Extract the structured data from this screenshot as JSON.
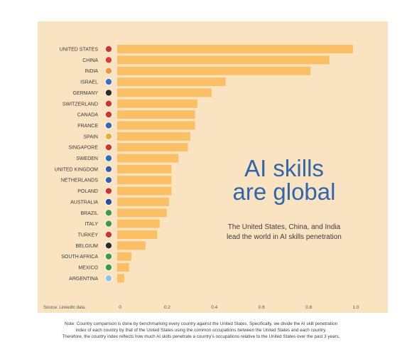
{
  "chart_data": {
    "type": "bar",
    "orientation": "horizontal",
    "categories": [
      "UNITED STATES",
      "CHINA",
      "INDIA",
      "ISRAEL",
      "GERMANY",
      "SWITZERLAND",
      "CANADA",
      "FRANCE",
      "SPAIN",
      "SINGAPORE",
      "SWEDEN",
      "UNITED KINGDOM",
      "NETHERLANDS",
      "POLAND",
      "AUSTRALIA",
      "BRAZIL",
      "ITALY",
      "TURKEY",
      "BELGIUM",
      "SOUTH AFRICA",
      "MEXICO",
      "ARGENTINA"
    ],
    "values": [
      1.0,
      0.9,
      0.82,
      0.46,
      0.4,
      0.34,
      0.33,
      0.33,
      0.31,
      0.3,
      0.26,
      0.23,
      0.23,
      0.23,
      0.22,
      0.21,
      0.18,
      0.17,
      0.12,
      0.06,
      0.05,
      0.03
    ],
    "xticks": [
      "0",
      "0.2",
      "0.4",
      "0.6",
      "0.8",
      "1.0"
    ],
    "xlim": [
      0,
      1.0
    ],
    "bar_color": "#fbbf65",
    "flag_colors": [
      "#d0352b",
      "#e23b2b",
      "#f0973b",
      "#3a6fc2",
      "#2b2b2b",
      "#d0352b",
      "#d0352b",
      "#3564b8",
      "#e8b02e",
      "#d0352b",
      "#2c6fbf",
      "#3a5fa8",
      "#3d5fb0",
      "#d0352b",
      "#2c4f9b",
      "#3b9b47",
      "#3b9b47",
      "#d0352b",
      "#2b2b2b",
      "#3b9b47",
      "#3b9b47",
      "#8ec3e8"
    ],
    "source": "Source: LinkedIn data.",
    "headline": [
      "AI skills",
      "are global"
    ],
    "subheadline": [
      "The United States, China, and India",
      "lead the world in AI skills penetration"
    ]
  },
  "footnote": [
    "Note: Country comparison is done by benchmarking every country against the United States. Specifically, we divide the AI skill penetration",
    "index of each country by that of the United States using the common occupations between the United States and each country.",
    "Therefore, the country index reflects how much AI skills penetrate a country's occupations relative to the United States over the past 3 years."
  ],
  "colors": {
    "panel_bg": "#fae3c0",
    "headline": "#2f66ad"
  }
}
